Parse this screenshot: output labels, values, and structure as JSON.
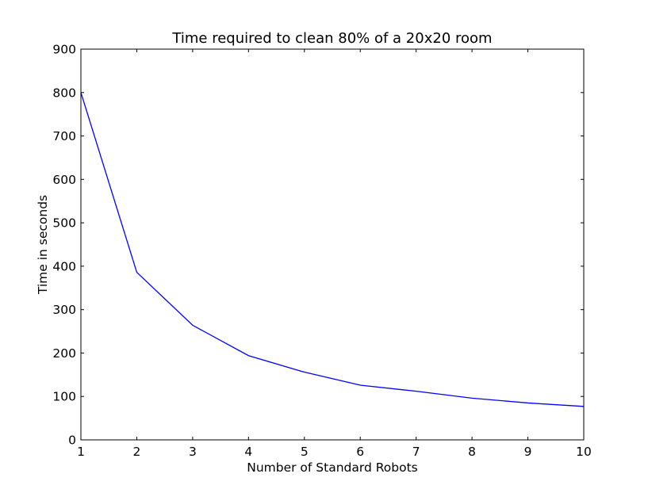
{
  "chart_data": {
    "type": "line",
    "title": "Time required to clean 80% of a 20x20 room",
    "xlabel": "Number of Standard Robots",
    "ylabel": "Time in seconds",
    "xlim": [
      1,
      10
    ],
    "ylim": [
      0,
      900
    ],
    "xticks": [
      "1",
      "2",
      "3",
      "4",
      "5",
      "6",
      "7",
      "8",
      "9",
      "10"
    ],
    "yticks": [
      "0",
      "100",
      "200",
      "300",
      "400",
      "500",
      "600",
      "700",
      "800",
      "900"
    ],
    "grid": false,
    "legend": "none",
    "series": [
      {
        "color": "#0000ff",
        "x": [
          1,
          2,
          3,
          4,
          5,
          6,
          7,
          8,
          9,
          10
        ],
        "y": [
          800,
          386,
          264,
          194,
          156,
          126,
          112,
          96,
          85,
          77
        ]
      }
    ]
  }
}
